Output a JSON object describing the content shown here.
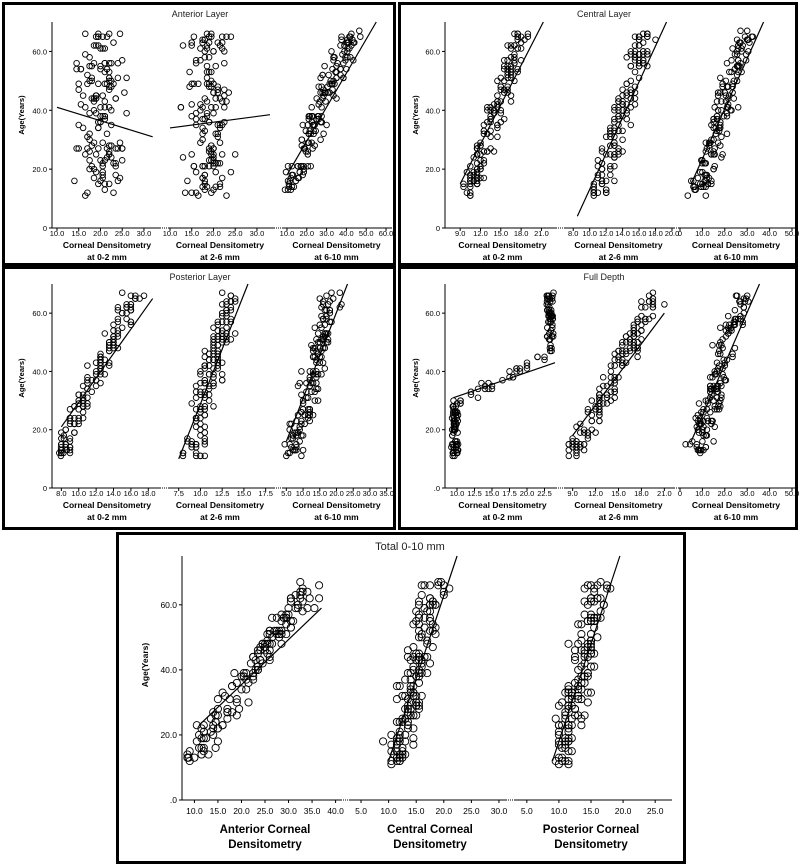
{
  "chart_data": [
    {
      "type": "scatter",
      "title": "Anterior Layer",
      "ylabel": "Age(Years)",
      "ylim": [
        0,
        70
      ],
      "yticks": [
        "0",
        "20.0",
        "40.0",
        "60.0"
      ],
      "panels": [
        {
          "xlabel": [
            "Corneal Densitometry",
            "at 0-2 mm"
          ],
          "xlim": [
            10,
            33
          ],
          "xticks": [
            "10.0",
            "15.0",
            "20.0",
            "25.0",
            "30.0"
          ],
          "fit": [
            [
              10,
              41
            ],
            [
              32,
              31
            ]
          ],
          "xc": 20,
          "xs": 4.5
        },
        {
          "xlabel": [
            "Corneal Densitometry",
            "at 2-6 mm"
          ],
          "xlim": [
            10,
            33
          ],
          "xticks": [
            "10.0",
            "15.0",
            "20.0",
            "25.0",
            "30.0"
          ],
          "fit": [
            [
              10,
              34
            ],
            [
              33,
              38.5
            ]
          ],
          "xc": 19,
          "xs": 4.5
        },
        {
          "xlabel": [
            "Corneal Densitometry",
            "at 6-10 mm"
          ],
          "xlim": [
            8,
            62
          ],
          "xticks": [
            "10.0",
            "20.0",
            "30.0",
            "40.0",
            "50.0",
            "60.0"
          ],
          "fit": [
            [
              10,
              18
            ],
            [
              62,
              78
            ]
          ],
          "xc": 24,
          "xs": 9
        }
      ]
    },
    {
      "type": "scatter",
      "title": "Central Layer",
      "ylabel": "Age(Years)",
      "ylim": [
        0,
        70
      ],
      "yticks": [
        "0",
        "20.0",
        "40.0",
        "60.0"
      ],
      "panels": [
        {
          "xlabel": [
            "Corneal Densitometry",
            "at 0-2 mm"
          ],
          "xlim": [
            7.5,
            23
          ],
          "xticks": [
            "9.0",
            "12.0",
            "15.0",
            "18.0",
            "21.0"
          ],
          "fit": [
            [
              9,
              15
            ],
            [
              21.5,
              71
            ]
          ],
          "xc": 13.5,
          "xs": 2.3
        },
        {
          "xlabel": [
            "Corneal Densitometry",
            "at 2-6 mm"
          ],
          "xlim": [
            7,
            20
          ],
          "xticks": [
            "8.0",
            "10.0",
            "12.0",
            "14.0",
            "16.0",
            "18.0",
            "20.0"
          ],
          "fit": [
            [
              8.5,
              4
            ],
            [
              19.5,
              71
            ]
          ],
          "xc": 13,
          "xs": 2.2
        },
        {
          "xlabel": [
            "Corneal Densitometry",
            "at 6-10 mm"
          ],
          "xlim": [
            0,
            50
          ],
          "xticks": [
            "0",
            "10.0",
            "20.0",
            "30.0",
            "40.0",
            "50.0"
          ],
          "fit": [
            [
              5,
              15
            ],
            [
              42,
              78
            ]
          ],
          "xc": 18,
          "xs": 8
        }
      ]
    },
    {
      "type": "scatter",
      "title": "Posterior Layer",
      "ylabel": "Age(Years)",
      "ylim": [
        0,
        70
      ],
      "yticks": [
        "0",
        "20.0",
        "40.0",
        "60.0"
      ],
      "panels": [
        {
          "xlabel": [
            "Corneal Densitometry",
            "at 0-2 mm"
          ],
          "xlim": [
            7.5,
            19
          ],
          "xticks": [
            "8.0",
            "10.0",
            "12.0",
            "14.0",
            "16.0",
            "18.0"
          ],
          "fit": [
            [
              8,
              21
            ],
            [
              18.5,
              65
            ]
          ],
          "xc": 11.5,
          "xs": 1.8
        },
        {
          "xlabel": [
            "Corneal Densitometry",
            "at 2-6 mm"
          ],
          "xlim": [
            6.5,
            18
          ],
          "xticks": [
            "7.5",
            "10.0",
            "12.5",
            "15.0",
            "17.5"
          ],
          "fit": [
            [
              7.5,
              10
            ],
            [
              16,
              74
            ]
          ],
          "xc": 11,
          "xs": 2
        },
        {
          "xlabel": [
            "Corneal Densitometry",
            "at 6-10 mm"
          ],
          "xlim": [
            4,
            36
          ],
          "xticks": [
            "5.0",
            "10.0",
            "15.0",
            "20.0",
            "25.0",
            "30.0",
            "35.0"
          ],
          "fit": [
            [
              5,
              16
            ],
            [
              26,
              78
            ]
          ],
          "xc": 13,
          "xs": 5
        }
      ]
    },
    {
      "type": "scatter",
      "title": "Full Depth",
      "ylabel": "Age(Years)",
      "ylim": [
        0,
        70
      ],
      "yticks": [
        ".0",
        "20.0",
        "40.0",
        "60.0"
      ],
      "panels": [
        {
          "xlabel": [
            "Corneal Densitometry",
            "at 0-2 mm"
          ],
          "xlim": [
            9,
            24
          ],
          "xticks": [
            "10.0",
            "12.5",
            "15.0",
            "17.5",
            "20.0",
            "22.5"
          ],
          "fit": [
            [
              9.5,
              31
            ],
            [
              24,
              43
            ]
          ],
          "xc": 15,
          "xs": 2.6
        },
        {
          "xlabel": [
            "Corneal Densitometry",
            "at  2-6 mm"
          ],
          "xlim": [
            8,
            22
          ],
          "xticks": [
            "9.0",
            "12.0",
            "15.0",
            "18.0",
            "21.0"
          ],
          "fit": [
            [
              9,
              18
            ],
            [
              21,
              60
            ]
          ],
          "xc": 13.5,
          "xs": 2.4
        },
        {
          "xlabel": [
            "Corneal Densitometry",
            "at 6-10 mm"
          ],
          "xlim": [
            0,
            50
          ],
          "xticks": [
            "0",
            "10.0",
            "20.0",
            "30.0",
            "40.0",
            "50.0"
          ],
          "fit": [
            [
              5,
              16
            ],
            [
              40,
              78
            ]
          ],
          "xc": 17,
          "xs": 8
        }
      ]
    },
    {
      "type": "scatter",
      "title": "Total 0-10 mm",
      "ylabel": "Age(Years)",
      "ylim": [
        0,
        75
      ],
      "yticks": [
        ".0",
        "20.0",
        "40.0",
        "60.0"
      ],
      "panels": [
        {
          "xlabel": [
            "Anterior Corneal",
            "Densitometry"
          ],
          "xlim": [
            8,
            42
          ],
          "xticks": [
            "10.0",
            "15.0",
            "20.0",
            "25.0",
            "30.0",
            "35.0",
            "40.0"
          ],
          "fit": [
            [
              11,
              23
            ],
            [
              37,
              59
            ]
          ],
          "xc": 20,
          "xs": 5
        },
        {
          "xlabel": [
            "Central Corneal",
            "Densitometry"
          ],
          "xlim": [
            3,
            32
          ],
          "xticks": [
            ".0",
            "5.0",
            "10.0",
            "15.0",
            "20.0",
            "25.0",
            "30.0"
          ],
          "fit": [
            [
              10,
              12
            ],
            [
              23,
              78
            ]
          ],
          "xc": 14,
          "xs": 4
        },
        {
          "xlabel": [
            "Posterior Corneal",
            "Densitometry"
          ],
          "xlim": [
            3,
            27
          ],
          "xticks": [
            ".0",
            "5.0",
            "10.0",
            "15.0",
            "20.0",
            "25.0"
          ],
          "fit": [
            [
              9,
              12
            ],
            [
              20,
              78
            ]
          ],
          "xc": 13,
          "xs": 3.5
        }
      ]
    }
  ]
}
